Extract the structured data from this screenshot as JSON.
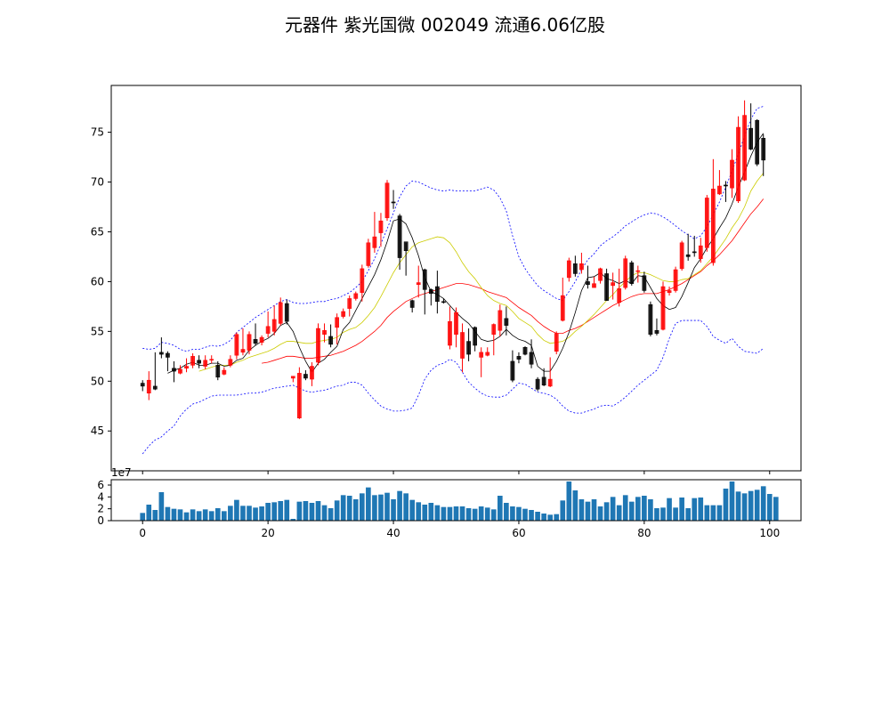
{
  "chart_data": {
    "type": "candlestick",
    "title": "元器件 紫光国微 002049 流通6.06亿股",
    "x_ticks": [
      0,
      20,
      40,
      60,
      80,
      100
    ],
    "price_y_ticks": [
      45,
      50,
      55,
      60,
      65,
      70,
      75
    ],
    "price_ylim": [
      41,
      79.7
    ],
    "xlim": [
      -5,
      105
    ],
    "volume_y_ticks": [
      0,
      2,
      4,
      6
    ],
    "volume_ylim": [
      0,
      6.9
    ],
    "volume_multiplier_label": "1e7",
    "colors": {
      "up": "#ff0000",
      "down": "#000000",
      "bb": "#0000ff",
      "ma_short": "#000000",
      "ma_mid": "#cccc00",
      "ma_long": "#ff0000",
      "volume": "#1f77b4"
    },
    "opens": [
      49.8,
      48.8,
      49.5,
      52.9,
      52.8,
      51.3,
      50.8,
      51.3,
      51.6,
      52.1,
      51.5,
      52.2,
      51.6,
      50.7,
      51.6,
      52.6,
      52.9,
      53.1,
      54.2,
      53.9,
      54.8,
      55.0,
      55.8,
      57.8,
      50.3,
      46.3,
      50.7,
      50.2,
      51.9,
      54.7,
      54.5,
      55.4,
      56.5,
      57.3,
      58.3,
      58.9,
      61.6,
      63.4,
      64.9,
      66.4,
      68.0,
      66.6,
      64.0,
      58.1,
      59.7,
      61.2,
      59.2,
      59.5,
      58.0,
      53.6,
      54.7,
      52.3,
      54.0,
      55.4,
      52.4,
      52.6,
      54.7,
      55.1,
      56.3,
      52.0,
      52.5,
      53.4,
      52.9,
      50.2,
      50.4,
      49.5,
      53.0,
      56.1,
      60.4,
      61.8,
      61.2,
      60.0,
      59.4,
      60.1,
      60.8,
      59.6,
      57.9,
      59.4,
      61.9,
      61.0,
      60.6,
      57.7,
      55.1,
      55.2,
      58.9,
      59.1,
      61.3,
      62.7,
      63.0,
      62.3,
      63.4,
      61.9,
      68.8,
      69.7,
      69.4,
      68.1,
      70.2,
      75.4,
      76.2,
      74.4
    ],
    "closes": [
      49.5,
      50.1,
      49.2,
      52.7,
      52.4,
      51.0,
      51.2,
      51.5,
      52.5,
      51.8,
      52.1,
      52.2,
      50.4,
      51.1,
      52.2,
      54.7,
      53.2,
      54.7,
      53.8,
      54.4,
      55.5,
      56.2,
      57.9,
      56.0,
      50.5,
      50.8,
      50.3,
      51.5,
      55.3,
      55.1,
      53.7,
      56.4,
      57.0,
      58.3,
      58.8,
      61.3,
      63.9,
      64.5,
      66.1,
      69.9,
      67.9,
      62.4,
      63.1,
      57.4,
      59.9,
      59.2,
      58.8,
      58.0,
      57.9,
      56.0,
      56.9,
      54.9,
      52.7,
      53.6,
      52.9,
      52.9,
      55.7,
      57.1,
      55.6,
      50.1,
      52.2,
      52.7,
      51.7,
      49.2,
      49.6,
      50.2,
      54.8,
      58.6,
      62.1,
      60.8,
      61.8,
      59.7,
      59.8,
      61.3,
      58.1,
      59.9,
      59.3,
      62.3,
      59.8,
      61.1,
      59.1,
      54.7,
      54.8,
      59.5,
      59.1,
      61.2,
      63.9,
      62.5,
      62.9,
      63.6,
      68.4,
      69.3,
      69.6,
      69.6,
      72.2,
      75.5,
      76.7,
      73.3,
      71.8,
      72.2
    ],
    "highs": [
      50.1,
      51.0,
      52.9,
      54.4,
      53.0,
      52.0,
      51.6,
      52.3,
      52.8,
      52.6,
      52.6,
      52.6,
      52.0,
      51.4,
      52.6,
      54.9,
      55.3,
      55.0,
      55.8,
      54.6,
      57.0,
      57.6,
      58.4,
      58.2,
      50.5,
      51.4,
      51.1,
      51.9,
      55.8,
      55.8,
      55.7,
      56.8,
      57.3,
      58.6,
      59.0,
      61.7,
      64.3,
      67.0,
      66.9,
      70.2,
      69.2,
      66.8,
      63.9,
      58.2,
      61.6,
      61.3,
      59.3,
      61.1,
      58.3,
      57.5,
      57.4,
      55.8,
      55.3,
      55.5,
      53.4,
      53.4,
      55.8,
      57.7,
      57.5,
      53.1,
      52.9,
      53.5,
      54.2,
      50.4,
      51.3,
      52.4,
      55.0,
      60.4,
      62.4,
      62.6,
      62.9,
      61.6,
      60.5,
      61.4,
      61.3,
      60.9,
      61.3,
      62.6,
      62.1,
      61.6,
      61.0,
      58.0,
      56.3,
      60.0,
      59.5,
      61.5,
      64.1,
      64.8,
      64.6,
      64.4,
      68.7,
      72.3,
      71.2,
      70.1,
      73.3,
      76.6,
      78.2,
      77.9,
      76.3,
      74.8
    ],
    "lows": [
      49.0,
      48.1,
      49.1,
      52.3,
      51.0,
      49.9,
      50.7,
      50.9,
      51.3,
      51.3,
      51.2,
      51.8,
      50.1,
      50.6,
      51.4,
      52.2,
      52.6,
      52.7,
      53.6,
      53.6,
      54.4,
      54.6,
      55.6,
      55.7,
      49.9,
      46.2,
      50.1,
      49.5,
      51.6,
      53.9,
      53.4,
      53.7,
      56.3,
      56.5,
      58.1,
      58.0,
      61.4,
      62.9,
      63.5,
      66.1,
      67.3,
      61.2,
      60.6,
      56.9,
      58.4,
      56.7,
      57.6,
      56.8,
      57.8,
      53.2,
      53.4,
      50.9,
      52.0,
      53.0,
      50.4,
      52.5,
      52.6,
      54.5,
      54.6,
      49.9,
      51.8,
      52.6,
      51.3,
      49.0,
      49.5,
      49.4,
      52.7,
      56.0,
      60.0,
      60.5,
      60.8,
      59.3,
      59.4,
      59.8,
      58.1,
      58.2,
      57.5,
      59.2,
      59.6,
      59.9,
      58.9,
      54.5,
      54.6,
      55.1,
      58.6,
      58.9,
      61.1,
      62.1,
      62.5,
      61.9,
      63.0,
      61.6,
      68.7,
      68.0,
      68.4,
      67.9,
      70.1,
      73.2,
      71.6,
      70.6
    ],
    "volumes_1e7": [
      1.3,
      2.7,
      1.8,
      4.8,
      2.3,
      2.0,
      1.9,
      1.4,
      1.9,
      1.6,
      1.9,
      1.6,
      2.1,
      1.6,
      2.5,
      3.5,
      2.5,
      2.5,
      2.2,
      2.4,
      3.0,
      3.1,
      3.3,
      3.5,
      0.3,
      3.2,
      3.3,
      3.0,
      3.3,
      2.6,
      2.1,
      3.4,
      4.3,
      4.2,
      3.6,
      4.6,
      5.6,
      4.3,
      4.4,
      4.7,
      3.6,
      5.0,
      4.6,
      3.5,
      3.1,
      2.7,
      3.0,
      2.6,
      2.3,
      2.3,
      2.4,
      2.4,
      2.1,
      2.0,
      2.4,
      2.2,
      1.9,
      4.2,
      3.0,
      2.4,
      2.3,
      2.0,
      1.8,
      1.5,
      1.2,
      1.0,
      1.1,
      3.4,
      6.6,
      5.1,
      3.6,
      3.2,
      3.6,
      2.4,
      3.1,
      4.0,
      2.6,
      4.3,
      3.2,
      4.0,
      4.2,
      3.6,
      2.1,
      2.2,
      3.8,
      2.2,
      3.9,
      2.1,
      3.8,
      3.9,
      2.6,
      2.6,
      2.6,
      5.4,
      6.6,
      4.9,
      4.6,
      5.0,
      5.2,
      5.8,
      4.5,
      4.0
    ],
    "ma_short": [
      null,
      null,
      null,
      null,
      50.8,
      51.1,
      51.3,
      51.7,
      51.9,
      51.6,
      51.6,
      51.8,
      51.8,
      51.5,
      51.6,
      52.1,
      52.3,
      53.1,
      53.6,
      54.0,
      54.3,
      54.8,
      55.6,
      55.9,
      55.0,
      53.4,
      52.0,
      50.9,
      51.8,
      52.2,
      52.9,
      53.5,
      55.2,
      55.9,
      57.1,
      58.3,
      59.5,
      60.7,
      62.2,
      64.0,
      66.1,
      66.3,
      65.8,
      64.4,
      62.6,
      60.4,
      59.0,
      58.7,
      58.3,
      57.6,
      56.9,
      56.3,
      55.8,
      55.0,
      54.2,
      54.0,
      54.1,
      54.5,
      55.2,
      54.6,
      54.2,
      54.0,
      53.6,
      51.5,
      51.0,
      51.0,
      52.0,
      53.3,
      54.9,
      56.9,
      59.1,
      60.4,
      60.5,
      60.9,
      60.3,
      60.1,
      59.8,
      60.1,
      59.8,
      60.6,
      60.5,
      59.4,
      58.3,
      57.6,
      57.2,
      57.4,
      58.5,
      59.9,
      61.4,
      62.3,
      63.4,
      64.3,
      65.4,
      66.4,
      67.8,
      69.5,
      71.0,
      72.6,
      74.0,
      74.9
    ],
    "ma_mid": [
      null,
      null,
      null,
      null,
      null,
      null,
      null,
      null,
      null,
      51.0,
      51.2,
      51.4,
      51.6,
      51.6,
      51.6,
      51.9,
      52.1,
      52.4,
      52.6,
      52.8,
      53.0,
      53.3,
      53.7,
      54.0,
      54.0,
      53.9,
      53.8,
      53.8,
      54.0,
      54.1,
      54.2,
      54.4,
      54.9,
      55.2,
      55.4,
      55.9,
      56.6,
      57.4,
      58.5,
      59.7,
      60.9,
      61.9,
      62.7,
      63.5,
      63.9,
      64.1,
      64.3,
      64.5,
      64.4,
      63.9,
      63.0,
      61.9,
      61.0,
      60.3,
      59.4,
      58.6,
      58.1,
      57.8,
      57.6,
      57.0,
      56.3,
      55.9,
      55.5,
      54.7,
      54.1,
      53.8,
      53.9,
      54.0,
      54.4,
      55.0,
      55.5,
      56.1,
      56.7,
      57.4,
      58.1,
      58.7,
      59.4,
      60.0,
      60.6,
      60.9,
      60.9,
      60.7,
      60.4,
      60.1,
      60.0,
      60.0,
      60.2,
      60.3,
      60.7,
      61.1,
      61.8,
      62.5,
      63.4,
      64.3,
      65.4,
      66.3,
      67.5,
      69.1,
      70.1,
      70.9
    ],
    "ma_long": [
      null,
      null,
      null,
      null,
      null,
      null,
      null,
      null,
      null,
      null,
      null,
      null,
      null,
      null,
      null,
      null,
      null,
      null,
      null,
      51.8,
      51.9,
      52.1,
      52.3,
      52.5,
      52.5,
      52.4,
      52.3,
      52.3,
      52.4,
      52.5,
      52.6,
      52.8,
      53.0,
      53.3,
      53.6,
      54.0,
      54.5,
      55.0,
      55.6,
      56.4,
      57.0,
      57.5,
      58.0,
      58.3,
      58.6,
      58.8,
      59.0,
      59.2,
      59.4,
      59.6,
      59.8,
      59.8,
      59.7,
      59.5,
      59.3,
      59.0,
      58.8,
      58.6,
      58.4,
      57.9,
      57.4,
      57.0,
      56.6,
      56.0,
      55.5,
      55.1,
      54.8,
      54.8,
      55.1,
      55.3,
      55.6,
      56.0,
      56.4,
      56.8,
      57.2,
      57.6,
      57.9,
      58.2,
      58.5,
      58.7,
      58.8,
      58.8,
      58.8,
      59.0,
      59.2,
      59.5,
      59.8,
      60.2,
      60.6,
      61.0,
      61.6,
      62.1,
      62.7,
      63.4,
      64.1,
      65.0,
      65.9,
      66.8,
      67.5,
      68.3
    ],
    "bb_upper": [
      53.3,
      53.2,
      53.3,
      53.9,
      53.8,
      53.6,
      53.2,
      53.0,
      53.2,
      53.2,
      53.4,
      53.6,
      53.5,
      53.7,
      54.1,
      54.9,
      55.4,
      55.9,
      56.4,
      56.8,
      57.2,
      57.6,
      58.0,
      58.2,
      57.9,
      57.8,
      57.8,
      57.9,
      58.0,
      58.0,
      58.2,
      58.3,
      58.6,
      58.9,
      59.4,
      60.0,
      61.1,
      62.3,
      63.8,
      65.3,
      66.9,
      68.5,
      69.6,
      70.1,
      70.0,
      69.7,
      69.4,
      69.2,
      69.1,
      69.2,
      69.1,
      69.1,
      69.1,
      69.1,
      69.3,
      69.5,
      69.2,
      68.4,
      67.1,
      64.6,
      62.5,
      61.3,
      60.4,
      59.6,
      59.1,
      58.7,
      58.3,
      58.1,
      59.0,
      60.0,
      61.2,
      62.2,
      62.8,
      63.6,
      64.1,
      64.5,
      65.0,
      65.6,
      66.0,
      66.4,
      66.7,
      66.9,
      66.8,
      66.5,
      66.1,
      65.6,
      65.1,
      64.7,
      64.3,
      64.6,
      65.5,
      66.7,
      68.0,
      69.5,
      71.1,
      72.8,
      74.6,
      76.3,
      77.4,
      77.6
    ],
    "bb_lower": [
      42.7,
      43.5,
      44.1,
      44.4,
      45.0,
      45.5,
      46.5,
      47.2,
      47.7,
      47.9,
      48.2,
      48.5,
      48.6,
      48.6,
      48.6,
      48.6,
      48.7,
      48.8,
      48.8,
      48.9,
      49.1,
      49.3,
      49.4,
      49.5,
      49.6,
      49.3,
      49.0,
      48.9,
      49.0,
      49.1,
      49.3,
      49.5,
      49.6,
      49.9,
      49.9,
      49.6,
      48.8,
      48.1,
      47.5,
      47.2,
      47.0,
      47.0,
      47.1,
      47.3,
      48.6,
      50.2,
      51.1,
      51.6,
      51.8,
      52.2,
      51.9,
      50.9,
      49.9,
      49.3,
      48.8,
      48.5,
      48.4,
      48.4,
      48.6,
      49.2,
      49.8,
      49.7,
      49.3,
      48.9,
      48.8,
      48.6,
      48.2,
      47.5,
      47.0,
      46.8,
      46.8,
      47.0,
      47.2,
      47.5,
      47.6,
      47.5,
      47.9,
      48.4,
      49.0,
      49.6,
      50.1,
      50.6,
      51.1,
      52.4,
      54.3,
      55.8,
      56.1,
      56.1,
      56.1,
      56.1,
      55.5,
      54.5,
      54.1,
      53.8,
      54.3,
      53.5,
      53.0,
      52.9,
      52.8,
      53.3
    ]
  }
}
